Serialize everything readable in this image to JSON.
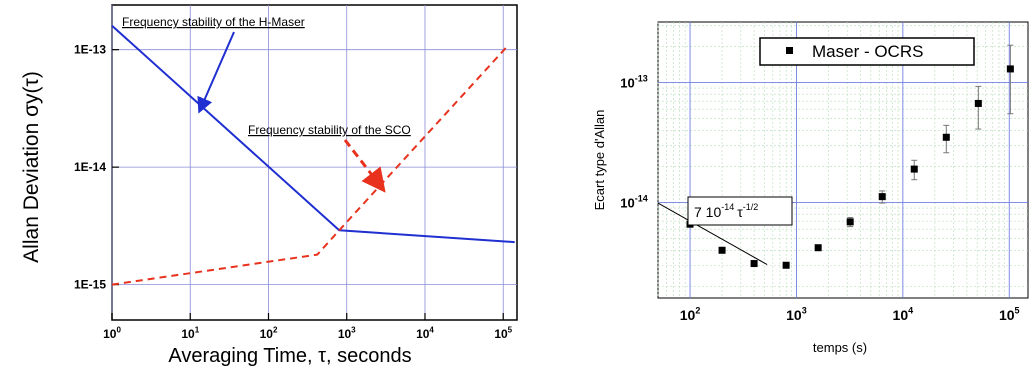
{
  "chart_data": [
    {
      "type": "line",
      "xscale": "log",
      "yscale": "log",
      "xlim": [
        1,
        150000
      ],
      "ylim": [
        5e-16,
        2.4e-13
      ],
      "grid": true,
      "ylabel": "Allan Deviation σy(τ)",
      "xlabel": "Averaging Time, τ, seconds",
      "x_ticks": [
        {
          "value": 1,
          "base": "10",
          "exp": "0"
        },
        {
          "value": 10,
          "base": "10",
          "exp": "1"
        },
        {
          "value": 100,
          "base": "10",
          "exp": "2"
        },
        {
          "value": 1000,
          "base": "10",
          "exp": "3"
        },
        {
          "value": 10000,
          "base": "10",
          "exp": "4"
        },
        {
          "value": 100000,
          "base": "10",
          "exp": "5"
        }
      ],
      "y_ticks": [
        {
          "value": 1e-13,
          "label": "1E-13"
        },
        {
          "value": 1e-14,
          "label": "1E-14"
        },
        {
          "value": 1e-15,
          "label": "1E-15"
        }
      ],
      "series": [
        {
          "name": "Frequency stability of the H-Maser",
          "color": "#1f2fd0",
          "dash": false,
          "x": [
            1,
            800,
            140000
          ],
          "y": [
            1.6e-13,
            2.9e-15,
            2.3e-15
          ]
        },
        {
          "name": "Frequency stability of the SCO",
          "color": "#e8321e",
          "dash": true,
          "x": [
            1,
            420,
            800,
            110000
          ],
          "y": [
            1e-15,
            1.8e-15,
            2.9e-15,
            1.05e-13
          ]
        }
      ],
      "annotations": [
        {
          "text": "Frequency stability of the H-Maser",
          "target_x": 12,
          "target_y": 3.6e-14
        },
        {
          "text": "Frequency stability of the SCO",
          "target_x": 3200,
          "target_y": 7e-15
        }
      ]
    },
    {
      "type": "scatter",
      "xscale": "log",
      "yscale": "log",
      "xlim": [
        50,
        150000
      ],
      "ylim": [
        1.6e-15,
        3.2e-13
      ],
      "grid": true,
      "ylabel": "Ecart type d'Allan",
      "xlabel": "temps (s)",
      "x_ticks": [
        {
          "value": 100,
          "base": "10",
          "exp": "2"
        },
        {
          "value": 1000,
          "base": "10",
          "exp": "3"
        },
        {
          "value": 10000,
          "base": "10",
          "exp": "4"
        },
        {
          "value": 100000,
          "base": "10",
          "exp": "5"
        }
      ],
      "y_ticks": [
        {
          "value": 1e-13,
          "base": "10",
          "exp": "-13"
        },
        {
          "value": 1e-14,
          "base": "10",
          "exp": "-14"
        }
      ],
      "legend": {
        "position": "top-right",
        "label": "Maser - OCRS"
      },
      "series": [
        {
          "name": "Maser - OCRS",
          "color": "#000000",
          "x": [
            100,
            200,
            400,
            800,
            1600,
            3200,
            6400,
            12800,
            25600,
            51200,
            102400
          ],
          "y": [
            6.6e-15,
            4e-15,
            3.1e-15,
            3e-15,
            4.2e-15,
            6.9e-15,
            1.12e-14,
            1.9e-14,
            3.5e-14,
            6.7e-14,
            1.3e-13
          ],
          "err": [
            2e-16,
            1e-16,
            1e-16,
            1e-16,
            2e-16,
            6e-16,
            1.3e-15,
            3.5e-15,
            9e-15,
            2.6e-14,
            7.5e-14
          ]
        }
      ],
      "fit_line": {
        "label_coef": "7 10",
        "label_coef_exp": "-14",
        "label_tau": "τ",
        "label_tau_exp": "-1/2",
        "x": [
          50,
          530
        ],
        "y": [
          9.9e-15,
          3.04e-15
        ]
      }
    }
  ]
}
